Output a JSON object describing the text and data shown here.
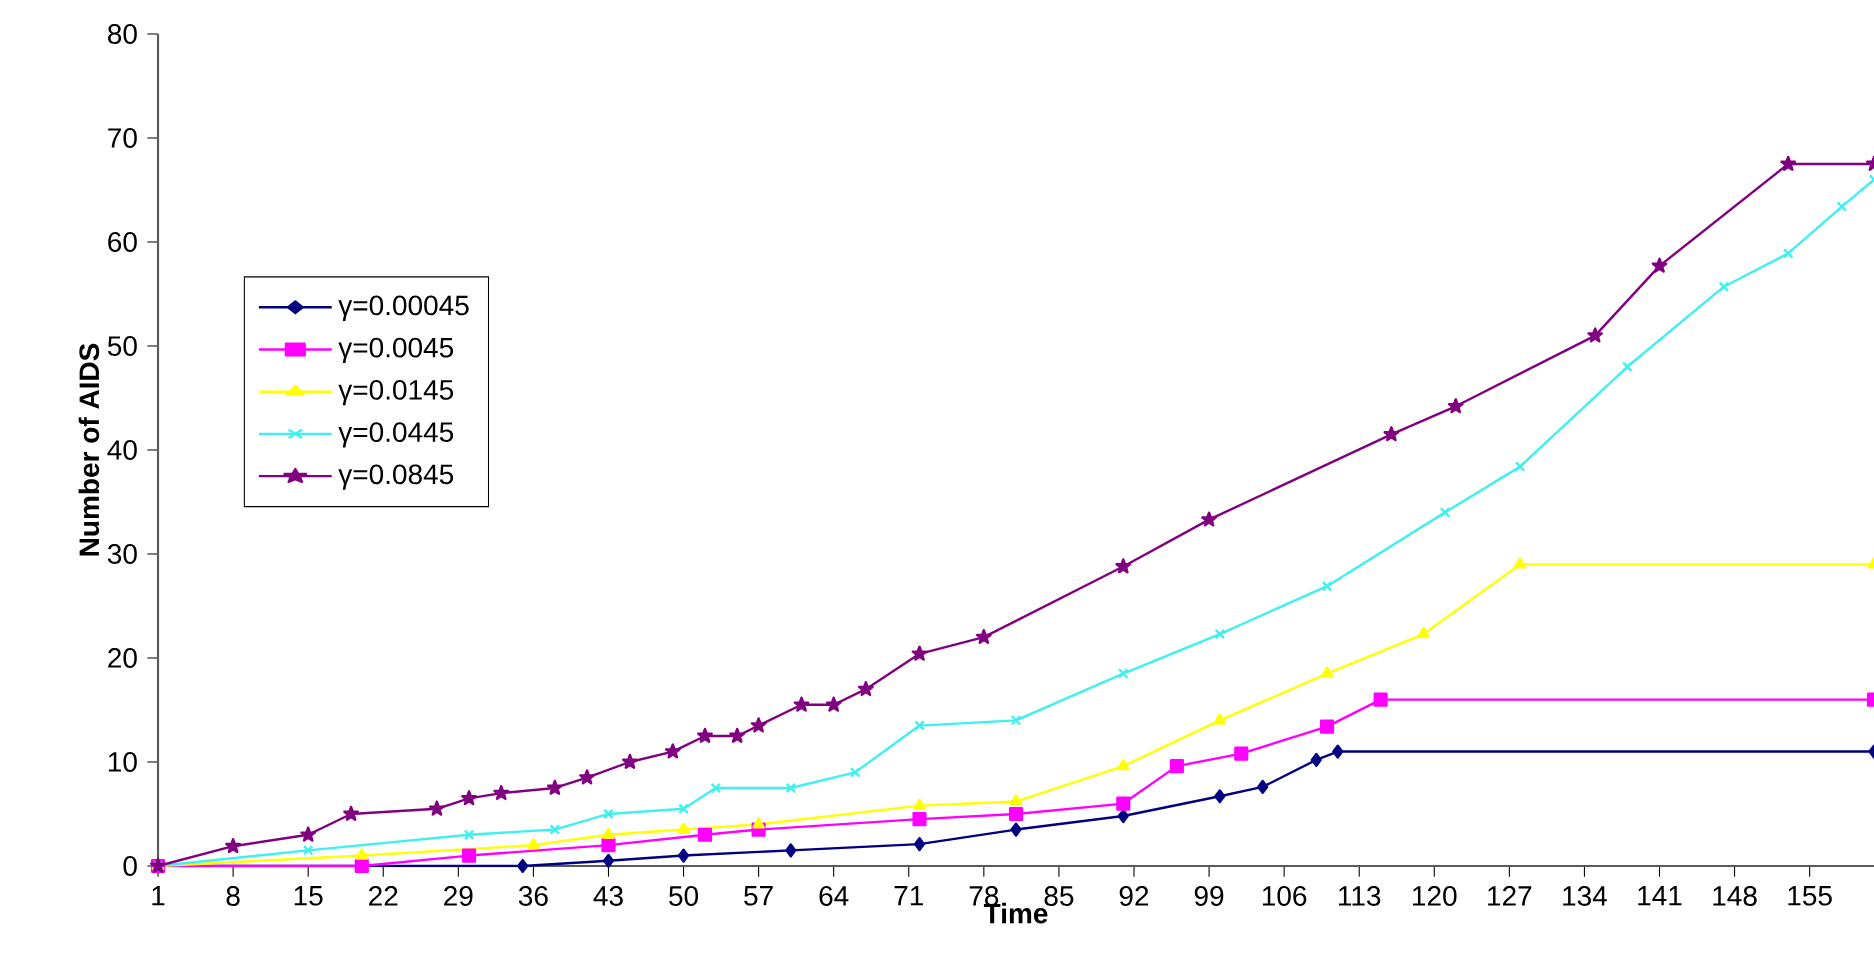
{
  "chart_data": {
    "type": "line",
    "xlabel": "Time",
    "ylabel": "Number of AIDS",
    "xlim": [
      1,
      161
    ],
    "xticks": [
      1,
      8,
      15,
      22,
      29,
      36,
      43,
      50,
      57,
      64,
      71,
      78,
      85,
      92,
      99,
      106,
      113,
      120,
      127,
      134,
      141,
      148,
      155
    ],
    "ylim": [
      0,
      80
    ],
    "yticks": [
      0,
      10,
      20,
      30,
      40,
      50,
      60,
      70,
      80
    ],
    "grid": false,
    "legend": "left",
    "series": [
      {
        "name": "γ=0.00045",
        "color": "#000080",
        "marker": "diamond",
        "x": [
          1,
          35,
          43,
          50,
          60,
          72,
          81,
          91,
          100,
          104,
          109,
          111,
          161
        ],
        "values": [
          0,
          0,
          0.5,
          1,
          1.5,
          2.1,
          3.5,
          4.8,
          6.7,
          7.6,
          10.2,
          11,
          11
        ]
      },
      {
        "name": "γ=0.0045",
        "color": "#ff00ff",
        "marker": "square",
        "x": [
          1,
          20,
          30,
          43,
          52,
          57,
          72,
          81,
          91,
          96,
          102,
          110,
          115,
          161
        ],
        "values": [
          0,
          0,
          1,
          2,
          3,
          3.5,
          4.5,
          5,
          6,
          9.6,
          10.8,
          13.4,
          16,
          16
        ]
      },
      {
        "name": "γ=0.0145",
        "color": "#ffff00",
        "marker": "triangle",
        "x": [
          1,
          20,
          36,
          43,
          50,
          57,
          72,
          81,
          91,
          100,
          110,
          119,
          128,
          161
        ],
        "values": [
          0,
          1,
          2,
          3,
          3.5,
          4,
          5.8,
          6.2,
          9.6,
          14,
          18.5,
          22.3,
          29,
          29
        ]
      },
      {
        "name": "γ=0.0445",
        "color": "#40f0f0",
        "marker": "cross",
        "x": [
          1,
          15,
          30,
          38,
          43,
          50,
          53,
          60,
          66,
          72,
          81,
          91,
          100,
          110,
          121,
          128,
          138,
          147,
          153,
          158,
          161
        ],
        "values": [
          0,
          1.5,
          3,
          3.5,
          5,
          5.5,
          7.5,
          7.5,
          9,
          13.5,
          14,
          18.5,
          22.3,
          26.9,
          34,
          38.4,
          48,
          55.7,
          58.9,
          63.4,
          66
        ]
      },
      {
        "name": "γ=0.0845",
        "color": "#800080",
        "marker": "star",
        "x": [
          1,
          8,
          15,
          19,
          27,
          30,
          33,
          38,
          41,
          45,
          49,
          52,
          55,
          57,
          61,
          64,
          67,
          72,
          78,
          91,
          99,
          116,
          122,
          135,
          141,
          153,
          161
        ],
        "values": [
          0,
          1.9,
          3,
          5,
          5.5,
          6.5,
          7,
          7.5,
          8.5,
          10,
          11,
          12.5,
          12.5,
          13.5,
          15.5,
          15.5,
          17,
          20.4,
          22,
          28.8,
          33.3,
          41.5,
          44.2,
          51,
          57.7,
          67.5,
          67.5
        ]
      }
    ]
  }
}
